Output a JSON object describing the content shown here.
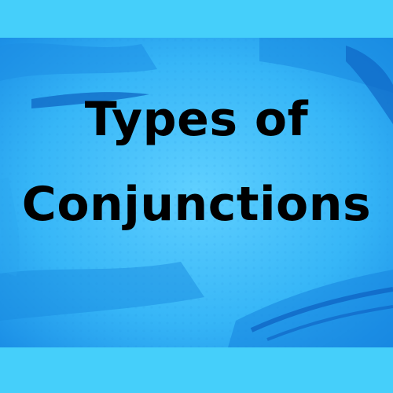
{
  "colors": {
    "band": "#45cffa",
    "panel_center": "#5ac8fb",
    "panel_edge": "#1b9aee",
    "title_text": "#000000"
  },
  "title": {
    "line1": "Types of",
    "line2": "Conjunctions"
  }
}
